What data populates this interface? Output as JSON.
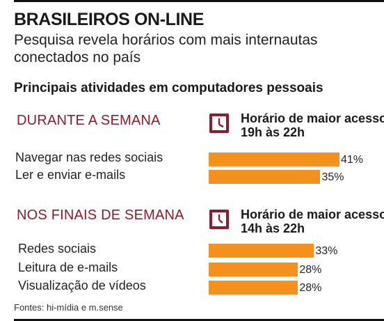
{
  "header": {
    "title": "BRASILEIROS ON-LINE",
    "subtitle_lines": [
      "Pesquisa revela horários com mais internautas",
      "conectados no país"
    ]
  },
  "section_title": "Principais atividades em computadores pessoais",
  "accent_color": "#8c1c2c",
  "bar_color": "#f4901e",
  "chart_data": [
    {
      "type": "bar",
      "orientation": "horizontal",
      "title": "DURANTE A SEMANA",
      "peak_label": "Horário de maior acesso",
      "peak_time": "19h às 22h",
      "icon": "clock-icon",
      "categories": [
        "Navegar nas redes sociais",
        "Ler e enviar e-mails"
      ],
      "values": [
        41,
        35
      ],
      "value_labels": [
        "41%",
        "35%"
      ],
      "unit": "%"
    },
    {
      "type": "bar",
      "orientation": "horizontal",
      "title": "NOS FINAIS DE SEMANA",
      "peak_label": "Horário de maior acesso",
      "peak_time": "14h às 22h",
      "icon": "clock-icon",
      "categories": [
        "Redes sociais",
        "Leitura de e-mails",
        "Visualização de vídeos"
      ],
      "values": [
        33,
        28,
        28
      ],
      "value_labels": [
        "33%",
        "28%",
        "28%"
      ],
      "unit": "%"
    }
  ],
  "source": "Fontes: hi-mídia e m.sense"
}
